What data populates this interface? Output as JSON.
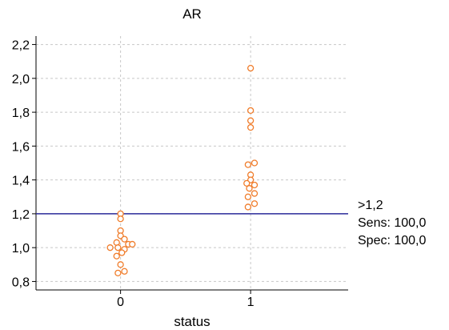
{
  "chart_data": {
    "type": "scatter",
    "title": "AR",
    "xlabel": "status",
    "ylabel": "",
    "categories": [
      "0",
      "1"
    ],
    "x_positions": [
      0,
      1
    ],
    "xlim": [
      -0.65,
      1.75
    ],
    "ylim": [
      0.75,
      2.25
    ],
    "yticks": [
      0.8,
      1.0,
      1.2,
      1.4,
      1.6,
      1.8,
      2.0,
      2.2
    ],
    "ytick_labels": [
      "0,8",
      "1,0",
      "1,2",
      "1,4",
      "1,6",
      "1,8",
      "2,0",
      "2,2"
    ],
    "grid": true,
    "marker_color": "#f07c2a",
    "cutoff_line_color": "#2a2a9a",
    "series": [
      {
        "category": "0",
        "points": [
          {
            "x": 0.0,
            "y": 1.2
          },
          {
            "x": 0.0,
            "y": 1.17
          },
          {
            "x": 0.0,
            "y": 1.1
          },
          {
            "x": 0.0,
            "y": 1.07
          },
          {
            "x": 0.03,
            "y": 1.05
          },
          {
            "x": -0.03,
            "y": 1.03
          },
          {
            "x": 0.06,
            "y": 1.02
          },
          {
            "x": 0.09,
            "y": 1.02
          },
          {
            "x": -0.08,
            "y": 1.0
          },
          {
            "x": -0.02,
            "y": 1.0
          },
          {
            "x": 0.03,
            "y": 0.99
          },
          {
            "x": 0.01,
            "y": 0.97
          },
          {
            "x": -0.03,
            "y": 0.95
          },
          {
            "x": 0.0,
            "y": 0.9
          },
          {
            "x": 0.03,
            "y": 0.86
          },
          {
            "x": -0.02,
            "y": 0.85
          }
        ]
      },
      {
        "category": "1",
        "points": [
          {
            "x": 0.0,
            "y": 2.06
          },
          {
            "x": 0.0,
            "y": 1.81
          },
          {
            "x": 0.0,
            "y": 1.75
          },
          {
            "x": 0.0,
            "y": 1.71
          },
          {
            "x": -0.02,
            "y": 1.49
          },
          {
            "x": 0.03,
            "y": 1.5
          },
          {
            "x": 0.0,
            "y": 1.43
          },
          {
            "x": 0.0,
            "y": 1.4
          },
          {
            "x": -0.03,
            "y": 1.38
          },
          {
            "x": 0.03,
            "y": 1.37
          },
          {
            "x": -0.01,
            "y": 1.35
          },
          {
            "x": 0.03,
            "y": 1.32
          },
          {
            "x": -0.02,
            "y": 1.3
          },
          {
            "x": 0.03,
            "y": 1.26
          },
          {
            "x": -0.02,
            "y": 1.24
          }
        ]
      }
    ],
    "cutoff": {
      "y": 1.2
    },
    "annotation": {
      "criterion": ">1,2",
      "sens": "Sens: 100,0",
      "spec": "Spec: 100,0"
    }
  }
}
